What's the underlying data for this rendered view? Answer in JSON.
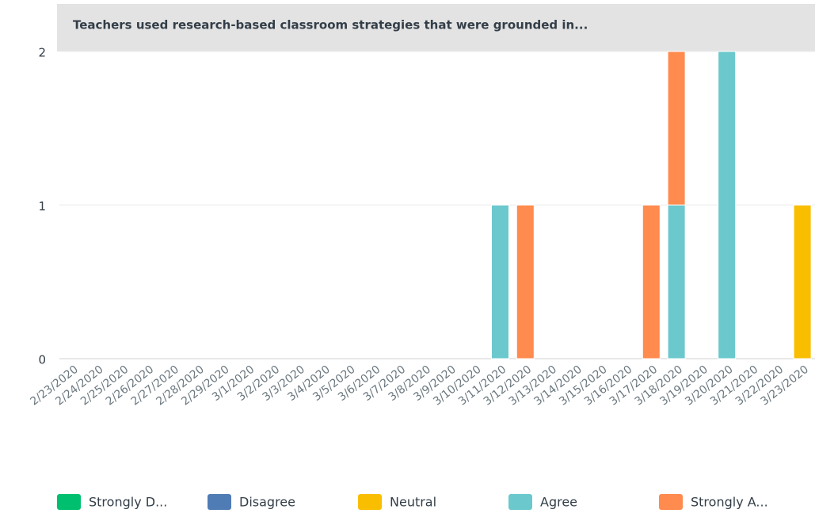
{
  "chart_data": {
    "type": "stacked_bar",
    "title": "Teachers used research-based classroom strategies that were grounded in...",
    "categories": [
      "2/23/2020",
      "2/24/2020",
      "2/25/2020",
      "2/26/2020",
      "2/27/2020",
      "2/28/2020",
      "2/29/2020",
      "3/1/2020",
      "3/2/2020",
      "3/3/2020",
      "3/4/2020",
      "3/5/2020",
      "3/6/2020",
      "3/7/2020",
      "3/8/2020",
      "3/9/2020",
      "3/10/2020",
      "3/11/2020",
      "3/12/2020",
      "3/13/2020",
      "3/14/2020",
      "3/15/2020",
      "3/16/2020",
      "3/17/2020",
      "3/18/2020",
      "3/19/2020",
      "3/20/2020",
      "3/21/2020",
      "3/22/2020",
      "3/23/2020"
    ],
    "series": [
      {
        "name": "Strongly D...",
        "color": "#00bf6f",
        "values": [
          0,
          0,
          0,
          0,
          0,
          0,
          0,
          0,
          0,
          0,
          0,
          0,
          0,
          0,
          0,
          0,
          0,
          0,
          0,
          0,
          0,
          0,
          0,
          0,
          0,
          0,
          0,
          0,
          0,
          0
        ]
      },
      {
        "name": "Disagree",
        "color": "#507cb6",
        "values": [
          0,
          0,
          0,
          0,
          0,
          0,
          0,
          0,
          0,
          0,
          0,
          0,
          0,
          0,
          0,
          0,
          0,
          0,
          0,
          0,
          0,
          0,
          0,
          0,
          0,
          0,
          0,
          0,
          0,
          0
        ]
      },
      {
        "name": "Neutral",
        "color": "#f9be00",
        "values": [
          0,
          0,
          0,
          0,
          0,
          0,
          0,
          0,
          0,
          0,
          0,
          0,
          0,
          0,
          0,
          0,
          0,
          0,
          0,
          0,
          0,
          0,
          0,
          0,
          0,
          0,
          0,
          0,
          0,
          1
        ]
      },
      {
        "name": "Agree",
        "color": "#6bc8cd",
        "values": [
          0,
          0,
          0,
          0,
          0,
          0,
          0,
          0,
          0,
          0,
          0,
          0,
          0,
          0,
          0,
          0,
          0,
          1,
          0,
          0,
          0,
          0,
          0,
          0,
          1,
          0,
          2,
          0,
          0,
          0
        ]
      },
      {
        "name": "Strongly A...",
        "color": "#ff8b4f",
        "values": [
          0,
          0,
          0,
          0,
          0,
          0,
          0,
          0,
          0,
          0,
          0,
          0,
          0,
          0,
          0,
          0,
          0,
          0,
          1,
          0,
          0,
          0,
          0,
          1,
          1,
          0,
          0,
          0,
          0,
          0
        ]
      }
    ],
    "ylim": [
      0,
      2
    ],
    "yticks": [
      0,
      1,
      2
    ],
    "grid": true
  }
}
